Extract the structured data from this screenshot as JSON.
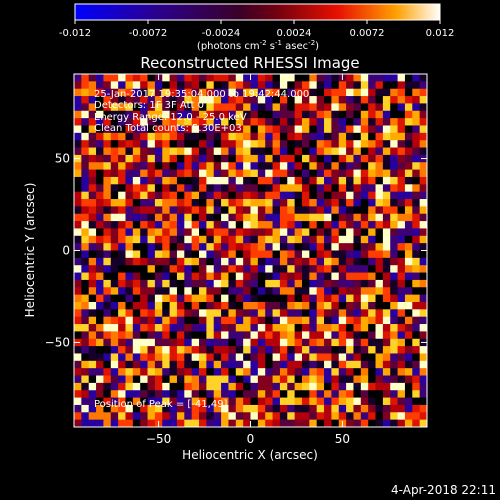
{
  "chart_data": {
    "type": "heatmap",
    "title": "Reconstructed RHESSI Image",
    "xlabel": "Heliocentric X (arcsec)",
    "ylabel": "Heliocentric Y (arcsec)",
    "xlim": [
      -96,
      96
    ],
    "ylim": [
      -96,
      96
    ],
    "x_ticks": [
      -50,
      0,
      50
    ],
    "y_ticks": [
      -50,
      0,
      50
    ],
    "colorbar": {
      "ticks": [
        "-0.012",
        "-0.0072",
        "-0.0024",
        "0.0024",
        "0.0072",
        "0.012"
      ],
      "range": [
        -0.012,
        0.012
      ],
      "units_label": "(photons cm",
      "units_exp1": "-2",
      "units_mid1": " s",
      "units_exp2": "-1",
      "units_mid2": " asec",
      "units_exp3": "-2",
      "units_end": ")"
    },
    "annotations": [
      "25-Jan-2017 19:35:04.000 to 19:42:44.000",
      "Detectors: 1F 3F  Att 0",
      "Energy Range: 12.0 - 25.0 keV",
      "Clean    Total counts: 5.30E+03"
    ],
    "peak_label": "Position of Peak = [-41,49]",
    "grid_size": 48,
    "seed": 71,
    "grid": false
  },
  "footer": {
    "timestamp": "4-Apr-2018 22:11"
  }
}
